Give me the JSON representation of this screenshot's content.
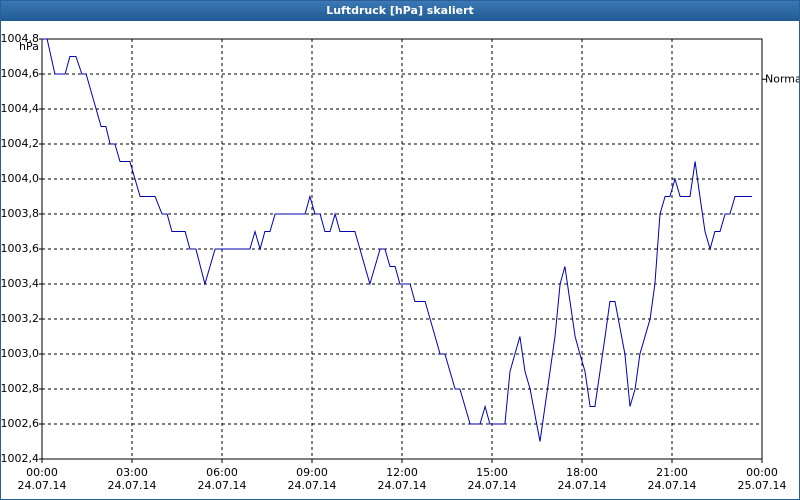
{
  "chart_data": {
    "type": "line",
    "title": "Luftdruck [hPa] skaliert",
    "y_label": "hPa",
    "reference": {
      "label": "Normal",
      "value": 1004.57
    },
    "x": [
      0,
      0.17,
      0.43,
      0.77,
      0.93,
      1.13,
      1.33,
      1.47,
      1.97,
      2.13,
      2.27,
      2.43,
      2.6,
      2.93,
      3.27,
      3.77,
      4.0,
      4.17,
      4.33,
      4.77,
      4.93,
      5.13,
      5.43,
      5.77,
      6.93,
      7.1,
      7.27,
      7.43,
      7.6,
      7.77,
      8.77,
      8.93,
      9.1,
      9.27,
      9.43,
      9.6,
      9.77,
      9.93,
      10.43,
      10.93,
      11.27,
      11.43,
      11.6,
      11.77,
      11.93,
      12.27,
      12.43,
      12.77,
      13.27,
      13.43,
      13.77,
      13.93,
      14.27,
      14.6,
      14.77,
      14.93,
      15.43,
      15.6,
      15.93,
      16.1,
      16.27,
      16.6,
      17.1,
      17.27,
      17.43,
      17.77,
      17.93,
      18.1,
      18.27,
      18.43,
      18.77,
      18.93,
      19.1,
      19.43,
      19.6,
      19.77,
      19.93,
      20.27,
      20.43,
      20.6,
      20.77,
      20.93,
      21.1,
      21.27,
      21.6,
      21.77,
      21.93,
      22.1,
      22.27,
      22.43,
      22.6,
      22.77,
      22.93,
      23.1,
      23.67
    ],
    "series": [
      {
        "name": "Luftdruck",
        "color": "#0000b0",
        "values": [
          1004.8,
          1004.8,
          1004.6,
          1004.6,
          1004.7,
          1004.7,
          1004.6,
          1004.6,
          1004.3,
          1004.3,
          1004.2,
          1004.2,
          1004.1,
          1004.1,
          1003.9,
          1003.9,
          1003.8,
          1003.8,
          1003.7,
          1003.7,
          1003.6,
          1003.6,
          1003.4,
          1003.6,
          1003.6,
          1003.7,
          1003.6,
          1003.7,
          1003.7,
          1003.8,
          1003.8,
          1003.9,
          1003.8,
          1003.8,
          1003.7,
          1003.7,
          1003.8,
          1003.7,
          1003.7,
          1003.4,
          1003.6,
          1003.6,
          1003.5,
          1003.5,
          1003.4,
          1003.4,
          1003.3,
          1003.3,
          1003.0,
          1003.0,
          1002.8,
          1002.8,
          1002.6,
          1002.6,
          1002.7,
          1002.6,
          1002.6,
          1002.9,
          1003.1,
          1002.9,
          1002.8,
          1002.5,
          1003.1,
          1003.4,
          1003.5,
          1003.1,
          1003.0,
          1002.9,
          1002.7,
          1002.7,
          1003.1,
          1003.3,
          1003.3,
          1003.0,
          1002.7,
          1002.8,
          1003.0,
          1003.2,
          1003.4,
          1003.8,
          1003.9,
          1003.9,
          1004.0,
          1003.9,
          1003.9,
          1004.1,
          1003.9,
          1003.7,
          1003.6,
          1003.7,
          1003.7,
          1003.8,
          1003.8,
          1003.9,
          1003.9
        ]
      }
    ],
    "xlim": [
      0,
      24
    ],
    "xticks": [
      {
        "value": 0,
        "label": "00:00\n24.07.14"
      },
      {
        "value": 3,
        "label": "03:00\n24.07.14"
      },
      {
        "value": 6,
        "label": "06:00\n24.07.14"
      },
      {
        "value": 9,
        "label": "09:00\n24.07.14"
      },
      {
        "value": 12,
        "label": "12:00\n24.07.14"
      },
      {
        "value": 15,
        "label": "15:00\n24.07.14"
      },
      {
        "value": 18,
        "label": "18:00\n24.07.14"
      },
      {
        "value": 21,
        "label": "21:00\n24.07.14"
      },
      {
        "value": 24,
        "label": "00:00\n25.07.14"
      }
    ],
    "ylim": [
      1002.4,
      1004.8
    ],
    "yticks": [
      {
        "value": 1002.4,
        "label": "1002,4"
      },
      {
        "value": 1002.6,
        "label": "1002,6"
      },
      {
        "value": 1002.8,
        "label": "1002,8"
      },
      {
        "value": 1003.0,
        "label": "1003,0"
      },
      {
        "value": 1003.2,
        "label": "1003,2"
      },
      {
        "value": 1003.4,
        "label": "1003,4"
      },
      {
        "value": 1003.6,
        "label": "1003,6"
      },
      {
        "value": 1003.8,
        "label": "1003,8"
      },
      {
        "value": 1004.0,
        "label": "1004,0"
      },
      {
        "value": 1004.2,
        "label": "1004,2"
      },
      {
        "value": 1004.4,
        "label": "1004,4"
      },
      {
        "value": 1004.6,
        "label": "1004,6"
      },
      {
        "value": 1004.8,
        "label": "1004,8"
      }
    ],
    "grid": true
  }
}
